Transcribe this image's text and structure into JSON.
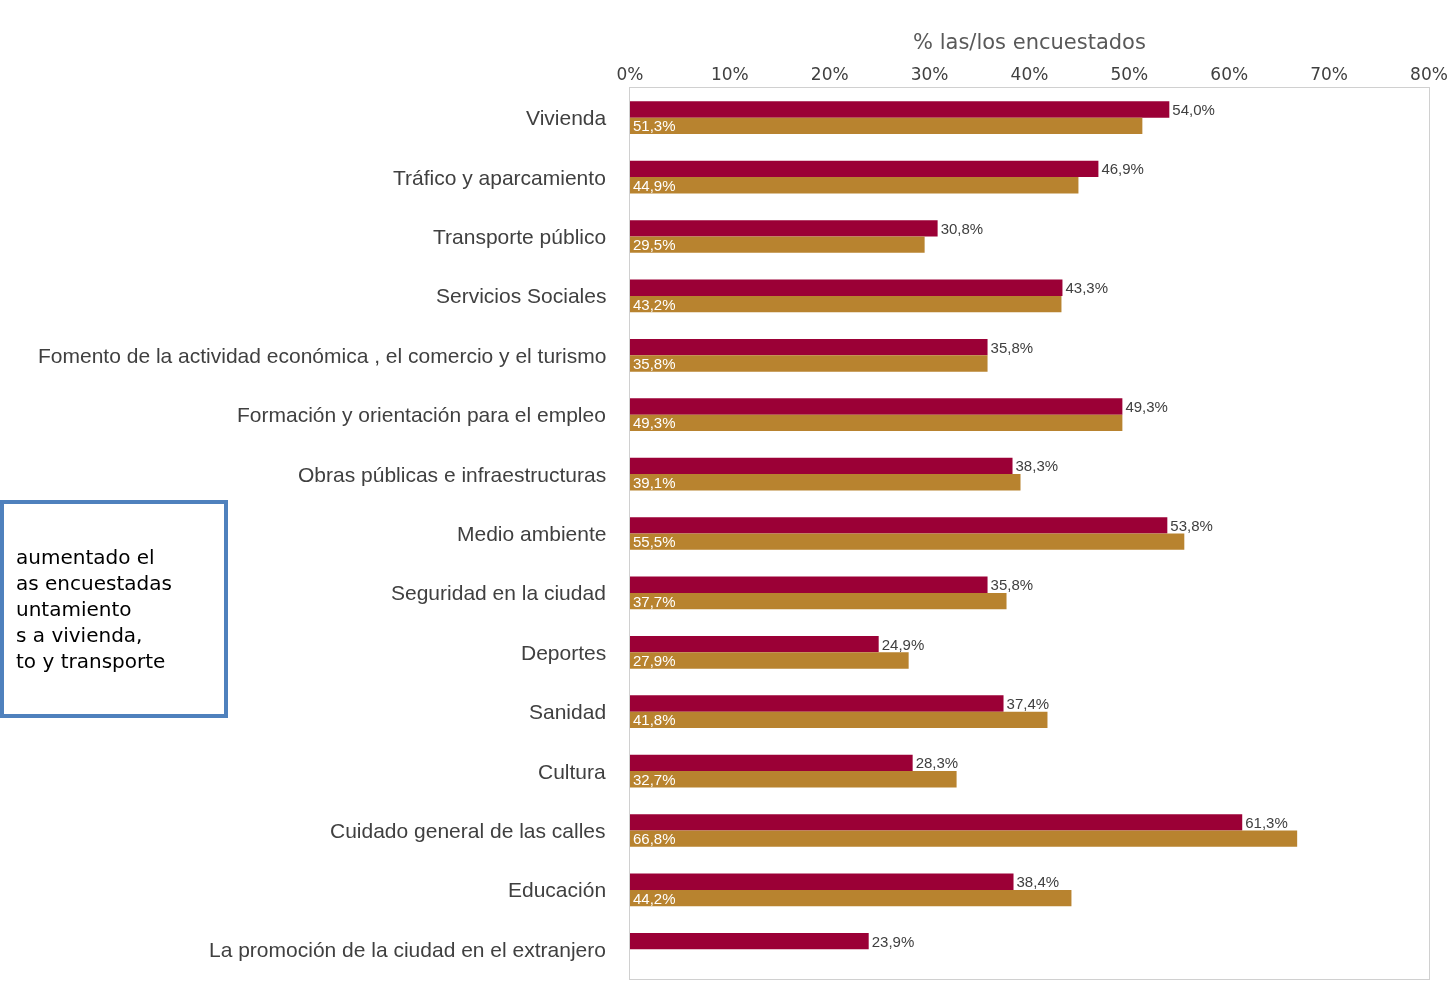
{
  "chart_data": {
    "type": "bar",
    "orientation": "horizontal",
    "xlabel": "% las/los encuestados",
    "categories": [
      "Vivienda",
      "Tráfico y aparcamiento",
      "Transporte público",
      "Servicios Sociales",
      "Fomento de la actividad económica , el comercio y el turismo",
      "Formación y orientación para el empleo",
      "Obras públicas e infraestructuras",
      "Medio ambiente",
      "Seguridad en la ciudad",
      "Deportes",
      "Sanidad",
      "Cultura",
      "Cuidado general de las calles",
      "Educación",
      "La promoción de la ciudad en el extranjero"
    ],
    "series": [
      {
        "color": "#9b0036",
        "values": [
          54.0,
          46.9,
          30.8,
          43.3,
          35.8,
          49.3,
          38.3,
          53.8,
          35.8,
          24.9,
          37.4,
          28.3,
          61.3,
          38.4,
          23.9
        ],
        "value_labels": [
          "54,0%",
          "46,9%",
          "30,8%",
          "43,3%",
          "35,8%",
          "49,3%",
          "38,3%",
          "53,8%",
          "35,8%",
          "24,9%",
          "37,4%",
          "28,3%",
          "61,3%",
          "38,4%",
          "23,9%"
        ]
      },
      {
        "color": "#b8832f",
        "values": [
          51.3,
          44.9,
          29.5,
          43.2,
          35.8,
          49.3,
          39.1,
          55.5,
          37.7,
          27.9,
          41.8,
          32.7,
          66.8,
          44.2,
          null
        ],
        "value_labels": [
          "51,3%",
          "44,9%",
          "29,5%",
          "43,2%",
          "35,8%",
          "49,3%",
          "39,1%",
          "55,5%",
          "37,7%",
          "27,9%",
          "41,8%",
          "32,7%",
          "66,8%",
          "44,2%",
          null
        ]
      }
    ],
    "xlim": [
      0,
      80
    ],
    "xticks": [
      {
        "value": 0,
        "label": "0%"
      },
      {
        "value": 10,
        "label": "10%"
      },
      {
        "value": 20,
        "label": "20%"
      },
      {
        "value": 30,
        "label": "30%"
      },
      {
        "value": 40,
        "label": "40%"
      },
      {
        "value": 50,
        "label": "50%"
      },
      {
        "value": 60,
        "label": "60%"
      },
      {
        "value": 70,
        "label": "70%"
      },
      {
        "value": 80,
        "label": "80%"
      }
    ],
    "grid": false,
    "annotations": [
      "aumentado el\nas encuestadas\nuntamiento\ns a vivienda,\nto y transporte"
    ]
  }
}
